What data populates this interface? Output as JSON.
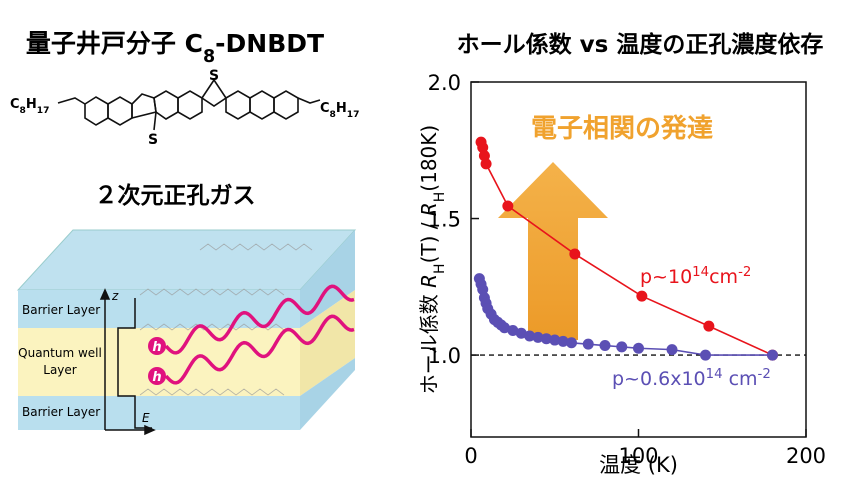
{
  "left_title": [
    {
      "text": "量子井戸分子 C",
      "style": "normal"
    },
    {
      "text": "8",
      "style": "sub"
    },
    {
      "text": "-DNBDT",
      "style": "normal"
    }
  ],
  "molecule": {
    "left_chain": [
      {
        "text": "C",
        "style": "normal"
      },
      {
        "text": "8",
        "style": "sub"
      },
      {
        "text": "H",
        "style": "normal"
      },
      {
        "text": "17",
        "style": "sub"
      }
    ],
    "right_chain": [
      {
        "text": "C",
        "style": "normal"
      },
      {
        "text": "8",
        "style": "sub"
      },
      {
        "text": "H",
        "style": "normal"
      },
      {
        "text": "17",
        "style": "sub"
      }
    ],
    "sulfur_top": "S",
    "sulfur_bottom": "S"
  },
  "gas_title": "２次元正孔ガス",
  "quantum_well": {
    "barrier_top": "Barrier Layer",
    "well": [
      "Quantum well",
      "Layer"
    ],
    "barrier_bottom": "Barrier Layer",
    "axis_z": "z",
    "axis_e": "E",
    "holes": [
      "h",
      "h"
    ]
  },
  "chart_data": {
    "type": "scatter_line",
    "title": "ホール係数 vs 温度の正孔濃度依存",
    "x_label": "温度 (K)",
    "y_label": [
      {
        "text": "ホール係数  ",
        "style": "normal"
      },
      {
        "text": "R",
        "style": "italic"
      },
      {
        "text": "H",
        "style": "sub"
      },
      {
        "text": "(T) / ",
        "style": "normal"
      },
      {
        "text": "R",
        "style": "italic"
      },
      {
        "text": "H",
        "style": "sub"
      },
      {
        "text": "(180K)",
        "style": "normal"
      }
    ],
    "xlim": [
      0,
      200
    ],
    "ylim": [
      0.7,
      2.0
    ],
    "xticks": [
      0,
      100,
      200
    ],
    "yticks": [
      {
        "value": 1.0,
        "label": "1.0"
      },
      {
        "value": 1.5,
        "label": "1.5"
      },
      {
        "value": 2.0,
        "label": "2.0"
      }
    ],
    "reference_line": 1.0,
    "series": [
      {
        "name": [
          {
            "text": "p~10",
            "style": "normal"
          },
          {
            "text": "14",
            "style": "sup"
          },
          {
            "text": "cm",
            "style": "normal"
          },
          {
            "text": "-2",
            "style": "sup"
          }
        ],
        "color": "#e8141c",
        "x": [
          6,
          7,
          8,
          9,
          22,
          62,
          102,
          142,
          180
        ],
        "values": [
          1.78,
          1.76,
          1.73,
          1.7,
          1.546,
          1.37,
          1.216,
          1.106,
          1.0
        ]
      },
      {
        "name": [
          {
            "text": "p~0.6x10",
            "style": "normal"
          },
          {
            "text": "14",
            "style": "sup"
          },
          {
            "text": " cm",
            "style": "normal"
          },
          {
            "text": "-2",
            "style": "sup"
          }
        ],
        "color": "#5b4fb4",
        "x": [
          5,
          6,
          7,
          8,
          9,
          10,
          12,
          14,
          16,
          18,
          20,
          25,
          30,
          35,
          40,
          45,
          50,
          55,
          60,
          70,
          80,
          90,
          100,
          120,
          140,
          180
        ],
        "values": [
          1.28,
          1.26,
          1.24,
          1.21,
          1.19,
          1.17,
          1.15,
          1.13,
          1.12,
          1.11,
          1.1,
          1.09,
          1.08,
          1.07,
          1.065,
          1.06,
          1.055,
          1.05,
          1.045,
          1.04,
          1.035,
          1.03,
          1.025,
          1.02,
          1.0,
          1.0
        ]
      }
    ],
    "annotation": "電子相関の発達",
    "annotation_color": "#f0a22e"
  }
}
